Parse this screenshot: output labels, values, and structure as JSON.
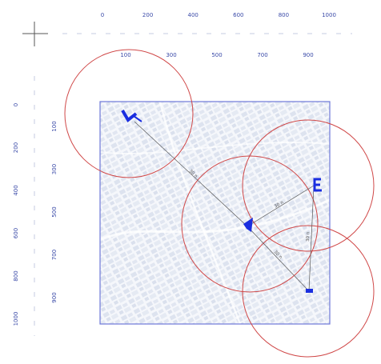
{
  "ruler_top": {
    "row1": [
      "0",
      "200",
      "400",
      "600",
      "800",
      "1000"
    ],
    "row2": [
      "100",
      "300",
      "500",
      "700",
      "900"
    ]
  },
  "ruler_left": {
    "col1": [
      "0",
      "200",
      "400",
      "600",
      "800",
      "1000"
    ],
    "col2": [
      "100",
      "300",
      "500",
      "700",
      "900"
    ]
  },
  "markers": [
    {
      "name": "marker-a",
      "glyph": "U"
    },
    {
      "name": "marker-b",
      "glyph": "E"
    },
    {
      "name": "marker-c",
      "glyph": "▲"
    },
    {
      "name": "marker-d",
      "glyph": "▬"
    }
  ],
  "links": [
    {
      "from": "marker-a",
      "to": "marker-c",
      "label": "30 n"
    },
    {
      "from": "marker-c",
      "to": "marker-b",
      "label": "30 n"
    },
    {
      "from": "marker-c",
      "to": "marker-d",
      "label": "30 n"
    },
    {
      "from": "marker-b",
      "to": "marker-d",
      "label": "30 n"
    }
  ],
  "colors": {
    "ruler": "#3a4aa8",
    "circle": "#d04848",
    "frame": "#6d78d8",
    "marker": "#1a2ee0",
    "map": "#c9d3e6"
  }
}
